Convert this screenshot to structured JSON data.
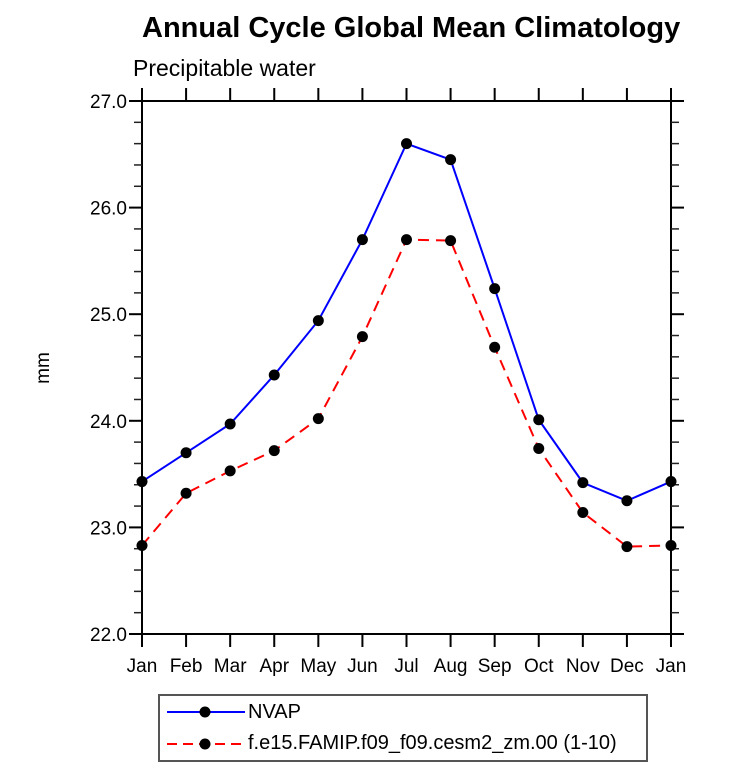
{
  "title": "Annual Cycle Global Mean Climatology",
  "subtitle": "Precipitable water",
  "chart_data": {
    "type": "line",
    "title": "Annual Cycle Global Mean Climatology",
    "subtitle": "Precipitable water",
    "xlabel": "",
    "ylabel": "mm",
    "categories": [
      "Jan",
      "Feb",
      "Mar",
      "Apr",
      "May",
      "Jun",
      "Jul",
      "Aug",
      "Sep",
      "Oct",
      "Nov",
      "Dec",
      "Jan"
    ],
    "ylim": [
      22.0,
      27.0
    ],
    "y_major_ticks": [
      27.0,
      26.0,
      25.0,
      24.0,
      23.0,
      22.0
    ],
    "y_tick_labels": [
      "27.0",
      "26.0",
      "25.0",
      "24.0",
      "23.0",
      "22.0"
    ],
    "y_minor_step": 0.2,
    "grid": false,
    "legend_position": "bottom",
    "frame_color": "#000000",
    "marker_color": "#000000",
    "series": [
      {
        "name": "NVAP",
        "color": "#0000ff",
        "style": "solid",
        "marker": "circle",
        "values": [
          23.43,
          23.7,
          23.97,
          24.43,
          24.94,
          25.7,
          26.6,
          26.45,
          25.24,
          24.01,
          23.42,
          23.25,
          23.43
        ]
      },
      {
        "name": "f.e15.FAMIP.f09_f09.cesm2_zm.00 (1-10)",
        "color": "#ff0000",
        "style": "dashed",
        "marker": "circle",
        "values": [
          22.83,
          23.32,
          23.53,
          23.72,
          24.02,
          24.79,
          25.7,
          25.69,
          24.69,
          23.74,
          23.14,
          22.82,
          22.83
        ]
      }
    ]
  }
}
